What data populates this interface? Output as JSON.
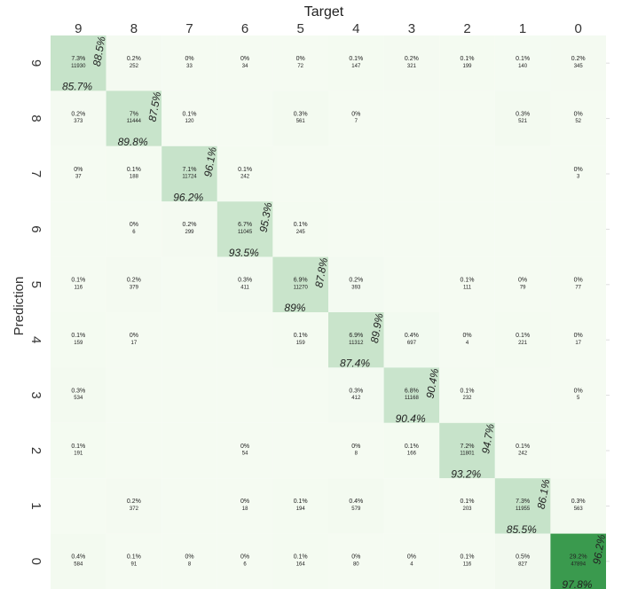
{
  "chart_data": {
    "type": "heatmap",
    "title": "Target",
    "y_label": "Prediction",
    "x_categories": [
      "9",
      "8",
      "7",
      "6",
      "5",
      "4",
      "3",
      "2",
      "1",
      "0"
    ],
    "y_categories": [
      "9",
      "8",
      "7",
      "6",
      "5",
      "4",
      "3",
      "2",
      "1",
      "0"
    ],
    "colorscale": [
      "#f5fbf2",
      "#3a9a4e"
    ],
    "values": [
      [
        11930,
        252,
        33,
        34,
        72,
        147,
        321,
        199,
        140,
        345
      ],
      [
        373,
        11444,
        120,
        null,
        561,
        7,
        null,
        null,
        521,
        52
      ],
      [
        37,
        188,
        11724,
        242,
        null,
        null,
        null,
        null,
        null,
        3
      ],
      [
        null,
        6,
        299,
        11045,
        245,
        null,
        null,
        null,
        null,
        null
      ],
      [
        116,
        379,
        null,
        411,
        11270,
        393,
        null,
        111,
        79,
        77
      ],
      [
        159,
        17,
        null,
        null,
        159,
        11312,
        697,
        4,
        221,
        17
      ],
      [
        534,
        null,
        null,
        null,
        null,
        412,
        11168,
        232,
        null,
        5
      ],
      [
        191,
        null,
        null,
        54,
        null,
        8,
        166,
        11801,
        242,
        null
      ],
      [
        null,
        372,
        null,
        18,
        194,
        579,
        null,
        203,
        11955,
        563
      ],
      [
        584,
        91,
        8,
        6,
        164,
        80,
        4,
        116,
        827,
        47894
      ]
    ],
    "percent_labels": [
      [
        "7.3%",
        "0.2%",
        "0%",
        "0%",
        "0%",
        "0.1%",
        "0.2%",
        "0.1%",
        "0.1%",
        "0.2%"
      ],
      [
        "0.2%",
        "7%",
        "0.1%",
        null,
        "0.3%",
        "0%",
        null,
        null,
        "0.3%",
        "0%"
      ],
      [
        "0%",
        "0.1%",
        "7.1%",
        "0.1%",
        null,
        null,
        null,
        null,
        null,
        "0%"
      ],
      [
        null,
        "0%",
        "0.2%",
        "6.7%",
        "0.1%",
        null,
        null,
        null,
        null,
        null
      ],
      [
        "0.1%",
        "0.2%",
        null,
        "0.3%",
        "6.9%",
        "0.2%",
        null,
        "0.1%",
        "0%",
        "0%"
      ],
      [
        "0.1%",
        "0%",
        null,
        null,
        "0.1%",
        "6.9%",
        "0.4%",
        "0%",
        "0.1%",
        "0%"
      ],
      [
        "0.3%",
        null,
        null,
        null,
        null,
        "0.3%",
        "6.8%",
        "0.1%",
        null,
        "0%"
      ],
      [
        "0.1%",
        null,
        null,
        "0%",
        null,
        "0%",
        "0.1%",
        "7.2%",
        "0.1%",
        null
      ],
      [
        null,
        "0.2%",
        null,
        "0%",
        "0.1%",
        "0.4%",
        null,
        "0.1%",
        "7.3%",
        "0.3%"
      ],
      [
        "0.4%",
        "0.1%",
        "0%",
        "0%",
        "0.1%",
        "0%",
        "0%",
        "0.1%",
        "0.5%",
        "29.2%"
      ]
    ],
    "precision": [
      "88.5%",
      "87.5%",
      "96.1%",
      "95.3%",
      "87.8%",
      "89.9%",
      "90.4%",
      "94.7%",
      "86.1%",
      "96.2%"
    ],
    "recall": [
      "85.7%",
      "89.8%",
      "96.2%",
      "93.5%",
      "89%",
      "87.4%",
      "90.4%",
      "93.2%",
      "85.5%",
      "97.8%"
    ]
  }
}
